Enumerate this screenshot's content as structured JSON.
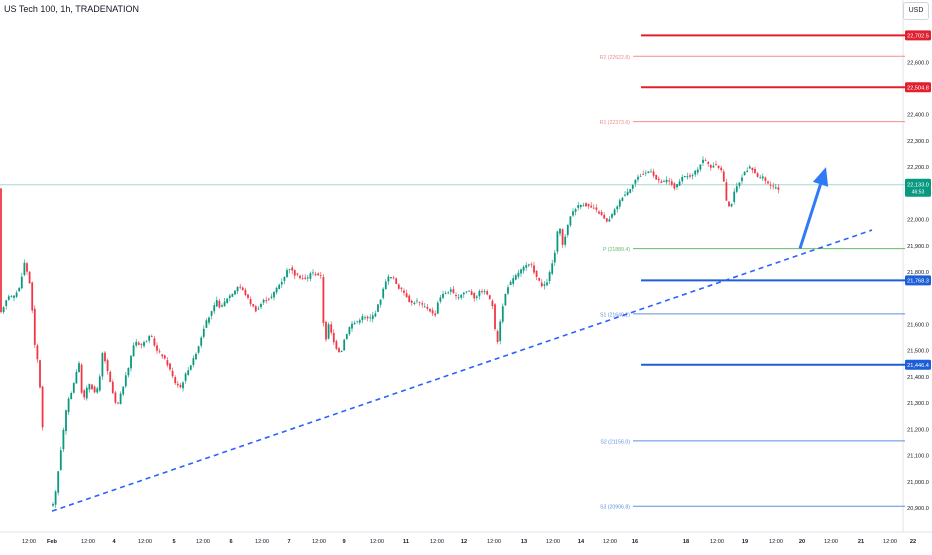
{
  "header": {
    "title": "US Tech 100, 1h, TRADENATION",
    "currency": "USD"
  },
  "colors": {
    "bull": "#089981",
    "bear": "#f23645",
    "resistance": "#e0202f",
    "support": "#1d5fd6",
    "pivot": "#4caf50",
    "trendline": "#2962ff",
    "arrow": "#2f7bf5"
  },
  "chart_data": {
    "type": "candlestick",
    "ylim": [
      20850,
      22810
    ],
    "y_ticks": [
      "22,600.0",
      "22,400.0",
      "22,300.0",
      "22,200.0",
      "22,000.0",
      "21,900.0",
      "21,800.0",
      "21,600.0",
      "21,500.0",
      "21,400.0",
      "21,300.0",
      "21,200.0",
      "21,100.0",
      "21,000.0",
      "20,900.0"
    ],
    "y_tick_values": [
      22600,
      22400,
      22300,
      22200,
      22000,
      21900,
      21800,
      21600,
      21500,
      21400,
      21300,
      21200,
      21100,
      21000,
      20900
    ],
    "x_ticks": [
      "12:00",
      "Feb",
      "12:00",
      "4",
      "12:00",
      "5",
      "12:00",
      "6",
      "12:00",
      "7",
      "12:00",
      "9",
      "12:00",
      "11",
      "12:00",
      "12",
      "12:00",
      "13",
      "12:00",
      "14",
      "12:00",
      "16",
      "18",
      "12:00",
      "19",
      "12:00",
      "20",
      "12:00",
      "21",
      "12:00",
      "22",
      "12:00"
    ],
    "price_anchors": [
      [
        0,
        21620
      ],
      [
        4,
        21660
      ],
      [
        8,
        21700
      ],
      [
        12,
        21720
      ],
      [
        14,
        21680
      ],
      [
        16,
        21720
      ],
      [
        20,
        21730
      ],
      [
        26,
        21840
      ],
      [
        32,
        21740
      ],
      [
        36,
        21520
      ],
      [
        40,
        21440
      ],
      [
        48,
        20960
      ],
      [
        52,
        20900
      ],
      [
        56,
        20930
      ],
      [
        62,
        21120
      ],
      [
        68,
        21290
      ],
      [
        74,
        21360
      ],
      [
        80,
        21460
      ],
      [
        84,
        21300
      ],
      [
        90,
        21380
      ],
      [
        96,
        21340
      ],
      [
        100,
        21360
      ],
      [
        104,
        21500
      ],
      [
        110,
        21400
      ],
      [
        118,
        21280
      ],
      [
        124,
        21360
      ],
      [
        130,
        21440
      ],
      [
        136,
        21540
      ],
      [
        142,
        21520
      ],
      [
        148,
        21540
      ],
      [
        152,
        21560
      ],
      [
        158,
        21500
      ],
      [
        164,
        21480
      ],
      [
        170,
        21440
      ],
      [
        176,
        21380
      ],
      [
        182,
        21360
      ],
      [
        188,
        21420
      ],
      [
        194,
        21460
      ],
      [
        200,
        21520
      ],
      [
        206,
        21600
      ],
      [
        212,
        21640
      ],
      [
        218,
        21690
      ],
      [
        222,
        21660
      ],
      [
        228,
        21700
      ],
      [
        234,
        21720
      ],
      [
        240,
        21750
      ],
      [
        246,
        21720
      ],
      [
        252,
        21680
      ],
      [
        258,
        21650
      ],
      [
        264,
        21690
      ],
      [
        272,
        21700
      ],
      [
        278,
        21740
      ],
      [
        284,
        21770
      ],
      [
        290,
        21820
      ],
      [
        296,
        21790
      ],
      [
        302,
        21780
      ],
      [
        308,
        21770
      ],
      [
        312,
        21800
      ],
      [
        318,
        21790
      ],
      [
        322,
        21790
      ],
      [
        326,
        21520
      ],
      [
        330,
        21600
      ],
      [
        336,
        21520
      ],
      [
        342,
        21490
      ],
      [
        346,
        21550
      ],
      [
        352,
        21600
      ],
      [
        358,
        21610
      ],
      [
        364,
        21630
      ],
      [
        370,
        21620
      ],
      [
        376,
        21640
      ],
      [
        382,
        21700
      ],
      [
        388,
        21780
      ],
      [
        394,
        21780
      ],
      [
        400,
        21740
      ],
      [
        406,
        21720
      ],
      [
        412,
        21680
      ],
      [
        418,
        21690
      ],
      [
        424,
        21670
      ],
      [
        430,
        21660
      ],
      [
        436,
        21630
      ],
      [
        440,
        21700
      ],
      [
        446,
        21720
      ],
      [
        452,
        21730
      ],
      [
        458,
        21700
      ],
      [
        464,
        21720
      ],
      [
        470,
        21730
      ],
      [
        476,
        21700
      ],
      [
        482,
        21730
      ],
      [
        488,
        21720
      ],
      [
        494,
        21670
      ],
      [
        498,
        21510
      ],
      [
        502,
        21630
      ],
      [
        508,
        21740
      ],
      [
        514,
        21770
      ],
      [
        520,
        21800
      ],
      [
        526,
        21820
      ],
      [
        532,
        21830
      ],
      [
        538,
        21780
      ],
      [
        544,
        21740
      ],
      [
        548,
        21760
      ],
      [
        552,
        21810
      ],
      [
        556,
        21870
      ],
      [
        560,
        21990
      ],
      [
        564,
        21900
      ],
      [
        568,
        21960
      ],
      [
        572,
        22020
      ],
      [
        578,
        22050
      ],
      [
        584,
        22060
      ],
      [
        590,
        22050
      ],
      [
        596,
        22040
      ],
      [
        602,
        22020
      ],
      [
        608,
        21990
      ],
      [
        612,
        22010
      ],
      [
        618,
        22050
      ],
      [
        624,
        22090
      ],
      [
        630,
        22110
      ],
      [
        636,
        22150
      ],
      [
        642,
        22170
      ],
      [
        648,
        22180
      ],
      [
        652,
        22190
      ],
      [
        658,
        22150
      ],
      [
        664,
        22140
      ],
      [
        668,
        22150
      ],
      [
        672,
        22140
      ],
      [
        676,
        22120
      ],
      [
        680,
        22140
      ],
      [
        684,
        22160
      ],
      [
        688,
        22170
      ],
      [
        692,
        22160
      ],
      [
        696,
        22180
      ],
      [
        700,
        22200
      ],
      [
        704,
        22230
      ],
      [
        708,
        22220
      ],
      [
        712,
        22200
      ],
      [
        716,
        22210
      ],
      [
        720,
        22200
      ],
      [
        724,
        22180
      ],
      [
        728,
        22060
      ],
      [
        732,
        22050
      ],
      [
        736,
        22110
      ],
      [
        740,
        22140
      ],
      [
        744,
        22170
      ],
      [
        748,
        22190
      ],
      [
        752,
        22200
      ],
      [
        756,
        22180
      ],
      [
        760,
        22160
      ],
      [
        764,
        22160
      ],
      [
        768,
        22140
      ],
      [
        772,
        22130
      ],
      [
        776,
        22120
      ],
      [
        780,
        22115
      ]
    ],
    "levels": [
      {
        "type": "resistance",
        "label": "",
        "price_label": "22,702.5",
        "value": 22702.5,
        "weight": "thick",
        "color": "#e0202f"
      },
      {
        "type": "resistance",
        "label": "R2 (22622.8)",
        "price_label": "",
        "value": 22622.8,
        "weight": "thin",
        "color": "#f28b8b"
      },
      {
        "type": "resistance",
        "label": "",
        "price_label": "22,504.8",
        "value": 22504.8,
        "weight": "thick",
        "color": "#e0202f"
      },
      {
        "type": "resistance",
        "label": "R1 (22373.6)",
        "price_label": "",
        "value": 22373.6,
        "weight": "thin",
        "color": "#f28b8b"
      },
      {
        "type": "pivot",
        "label": "P (21889.4)",
        "price_label": "",
        "value": 21889.4,
        "weight": "thin",
        "color": "#66bb6a"
      },
      {
        "type": "support",
        "label": "",
        "price_label": "21,768.3",
        "value": 21768.3,
        "weight": "thick",
        "color": "#1d5fd6"
      },
      {
        "type": "support",
        "label": "S1 (21640.2)",
        "price_label": "",
        "value": 21640.2,
        "weight": "thin",
        "color": "#5d8fe0"
      },
      {
        "type": "support",
        "label": "",
        "price_label": "21,446.4",
        "value": 21446.4,
        "weight": "thick",
        "color": "#1d5fd6"
      },
      {
        "type": "support",
        "label": "S2 (21156.0)",
        "price_label": "",
        "value": 21156.0,
        "weight": "thin",
        "color": "#5d8fe0"
      },
      {
        "type": "support",
        "label": "S3 (20906.8)",
        "price_label": "",
        "value": 20906.8,
        "weight": "thin",
        "color": "#5d8fe0"
      }
    ],
    "current_price": {
      "value": 22133.0,
      "label": "22,133.0",
      "countdown": "46:53"
    },
    "trendline": {
      "from": [
        52,
        20888
      ],
      "to": [
        872,
        21960
      ]
    },
    "arrow_annotation": {
      "direction": "up",
      "from": [
        800,
        21890
      ],
      "to": [
        826,
        22200
      ]
    }
  }
}
